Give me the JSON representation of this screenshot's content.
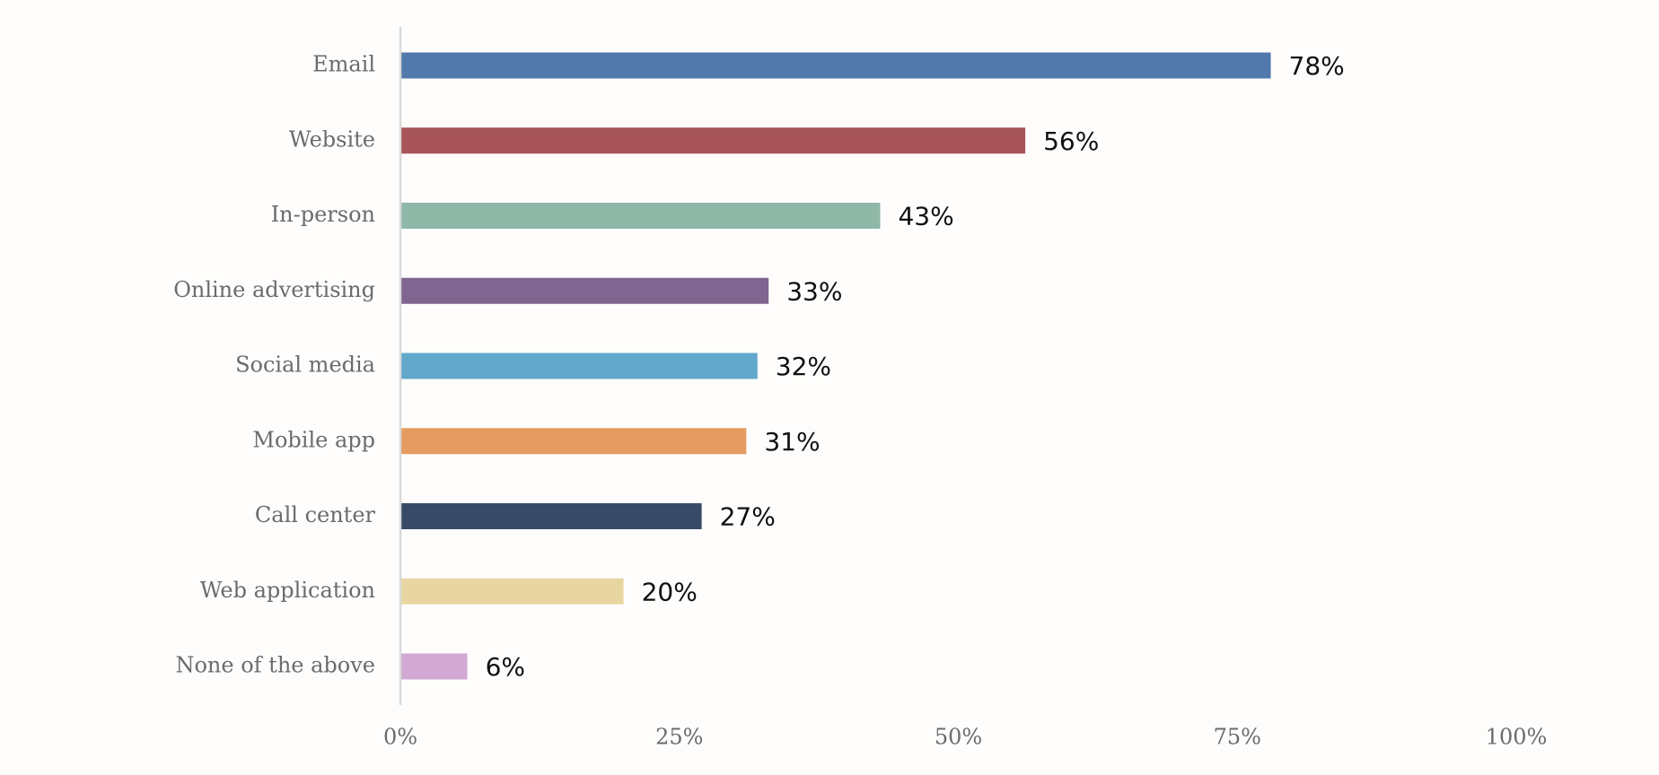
{
  "chart_data": {
    "type": "bar",
    "orientation": "horizontal",
    "categories": [
      "Email",
      "Website",
      "In-person",
      "Online advertising",
      "Social media",
      "Mobile app",
      "Call center",
      "Web application",
      "None of the above"
    ],
    "values": [
      78,
      56,
      43,
      33,
      32,
      31,
      27,
      20,
      6
    ],
    "value_labels": [
      "78%",
      "56%",
      "43%",
      "33%",
      "32%",
      "31%",
      "27%",
      "20%",
      "6%"
    ],
    "colors": [
      "#5279ab",
      "#a65457",
      "#8fb8a8",
      "#7f6590",
      "#62a8cb",
      "#e69b60",
      "#374b69",
      "#e8d6a2",
      "#d1a9d3"
    ],
    "x_ticks": [
      0,
      25,
      50,
      75,
      100
    ],
    "x_tick_labels": [
      "0%",
      "25%",
      "50%",
      "75%",
      "100%"
    ],
    "xlim": [
      0,
      100
    ],
    "grid": false,
    "legend": "none",
    "axis_color": "#d9d9d9"
  }
}
